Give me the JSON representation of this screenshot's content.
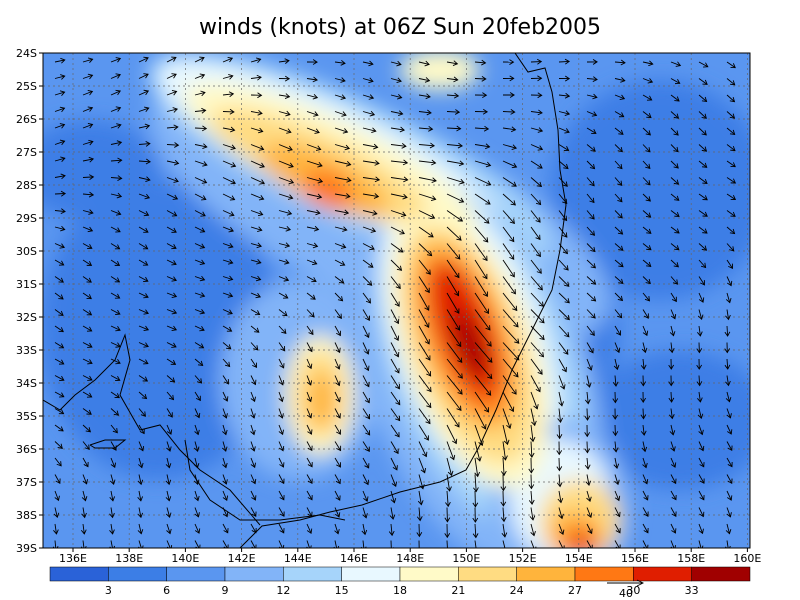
{
  "title": "winds (knots) at 06Z Sun 20feb2005",
  "lat_labels": [
    "24S",
    "25S",
    "26S",
    "27S",
    "28S",
    "29S",
    "30S",
    "31S",
    "32S",
    "33S",
    "34S",
    "35S",
    "36S",
    "37S",
    "38S",
    "39S"
  ],
  "lon_labels": [
    "136E",
    "138E",
    "140E",
    "142E",
    "144E",
    "146E",
    "148E",
    "150E",
    "152E",
    "154E",
    "156E",
    "158E",
    "160E"
  ],
  "colorbar": {
    "levels": [
      3,
      6,
      9,
      12,
      15,
      18,
      21,
      24,
      27,
      30,
      33
    ],
    "colors": [
      "#2a62d8",
      "#3c7ee6",
      "#5a96f0",
      "#82b4f8",
      "#a6d4fa",
      "#e8f8ff",
      "#fffac8",
      "#ffdc82",
      "#ffb43c",
      "#ff7814",
      "#e01e00",
      "#a00000"
    ]
  },
  "vector_reference": "40"
}
